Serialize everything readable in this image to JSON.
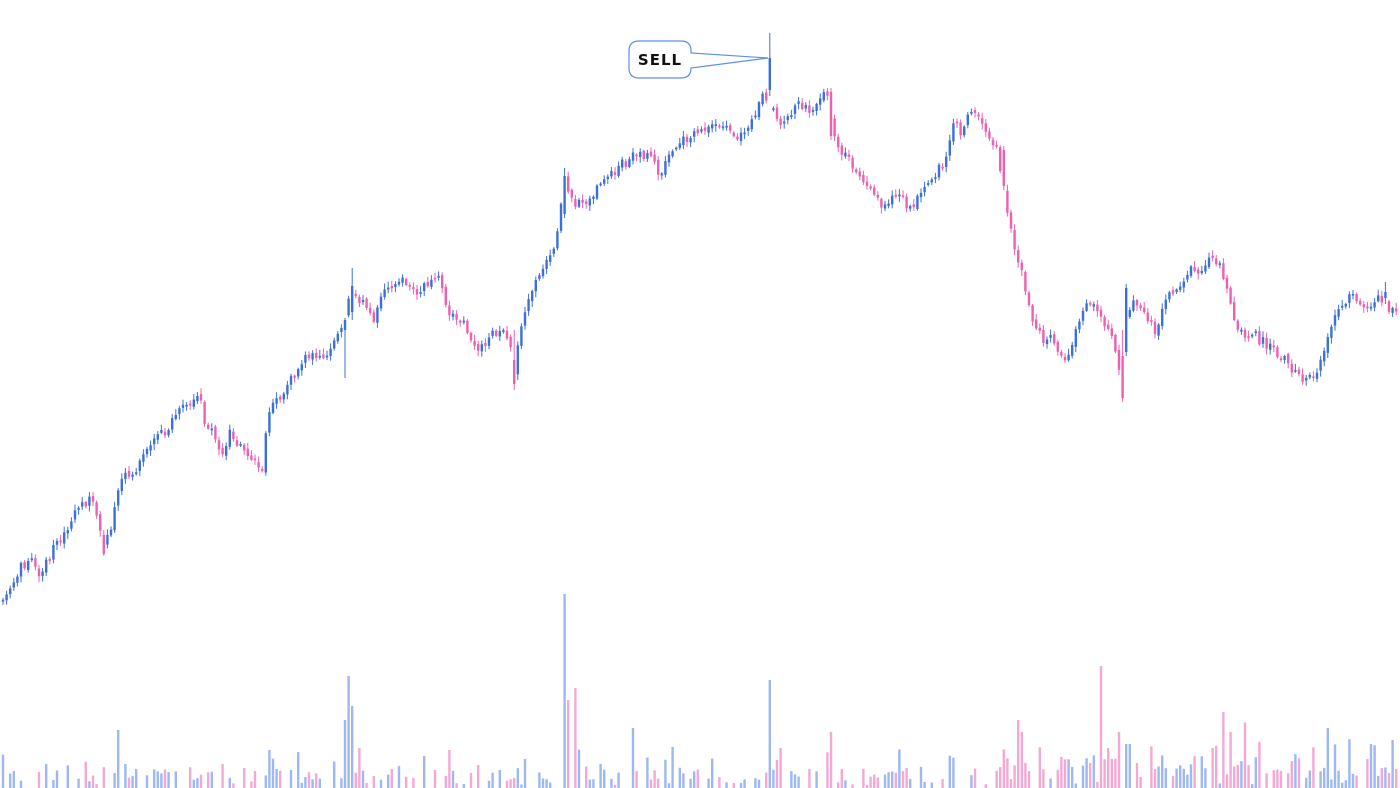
{
  "chart_data": {
    "type": "candlestick",
    "title": "",
    "xlabel": "",
    "ylabel": "",
    "grid": false,
    "legend": "none",
    "colors": {
      "up": "#3b6fd9",
      "down": "#ef5fb0",
      "volume_up": "#9db8f2",
      "volume_down": "#f4a9d4",
      "callout_stroke": "#5b8ef0"
    },
    "anchors": [
      [
        0,
        604
      ],
      [
        8,
        597
      ],
      [
        16,
        582
      ],
      [
        24,
        565
      ],
      [
        32,
        560
      ],
      [
        40,
        575
      ],
      [
        48,
        562
      ],
      [
        56,
        548
      ],
      [
        64,
        538
      ],
      [
        72,
        520
      ],
      [
        80,
        510
      ],
      [
        88,
        502
      ],
      [
        96,
        500
      ],
      [
        104,
        545
      ],
      [
        112,
        530
      ],
      [
        118,
        500
      ],
      [
        124,
        478
      ],
      [
        132,
        472
      ],
      [
        140,
        468
      ],
      [
        148,
        452
      ],
      [
        156,
        434
      ],
      [
        162,
        430
      ],
      [
        168,
        442
      ],
      [
        174,
        420
      ],
      [
        180,
        410
      ],
      [
        188,
        408
      ],
      [
        196,
        404
      ],
      [
        202,
        398
      ],
      [
        208,
        428
      ],
      [
        216,
        436
      ],
      [
        224,
        458
      ],
      [
        232,
        432
      ],
      [
        240,
        448
      ],
      [
        248,
        452
      ],
      [
        256,
        460
      ],
      [
        264,
        468
      ],
      [
        270,
        412
      ],
      [
        278,
        400
      ],
      [
        286,
        392
      ],
      [
        294,
        378
      ],
      [
        302,
        370
      ],
      [
        308,
        356
      ],
      [
        316,
        356
      ],
      [
        324,
        358
      ],
      [
        332,
        348
      ],
      [
        340,
        338
      ],
      [
        346,
        320
      ],
      [
        352,
        290
      ],
      [
        358,
        298
      ],
      [
        364,
        302
      ],
      [
        370,
        312
      ],
      [
        376,
        318
      ],
      [
        382,
        298
      ],
      [
        388,
        292
      ],
      [
        396,
        286
      ],
      [
        402,
        280
      ],
      [
        410,
        288
      ],
      [
        418,
        290
      ],
      [
        426,
        286
      ],
      [
        434,
        282
      ],
      [
        440,
        274
      ],
      [
        448,
        304
      ],
      [
        456,
        320
      ],
      [
        464,
        322
      ],
      [
        472,
        338
      ],
      [
        480,
        346
      ],
      [
        488,
        342
      ],
      [
        496,
        332
      ],
      [
        504,
        328
      ],
      [
        512,
        348
      ],
      [
        516,
        370
      ],
      [
        522,
        330
      ],
      [
        528,
        308
      ],
      [
        534,
        292
      ],
      [
        540,
        274
      ],
      [
        546,
        266
      ],
      [
        552,
        258
      ],
      [
        558,
        246
      ],
      [
        566,
        180
      ],
      [
        572,
        190
      ],
      [
        578,
        204
      ],
      [
        586,
        206
      ],
      [
        594,
        196
      ],
      [
        600,
        186
      ],
      [
        606,
        178
      ],
      [
        614,
        172
      ],
      [
        622,
        166
      ],
      [
        630,
        160
      ],
      [
        638,
        152
      ],
      [
        646,
        156
      ],
      [
        654,
        160
      ],
      [
        660,
        172
      ],
      [
        666,
        168
      ],
      [
        674,
        150
      ],
      [
        680,
        146
      ],
      [
        688,
        138
      ],
      [
        696,
        136
      ],
      [
        704,
        132
      ],
      [
        712,
        130
      ],
      [
        720,
        126
      ],
      [
        728,
        124
      ],
      [
        734,
        130
      ],
      [
        740,
        138
      ],
      [
        746,
        136
      ],
      [
        752,
        128
      ],
      [
        758,
        110
      ],
      [
        764,
        94
      ],
      [
        770,
        100
      ],
      [
        776,
        116
      ],
      [
        782,
        130
      ],
      [
        788,
        122
      ],
      [
        794,
        114
      ],
      [
        800,
        106
      ],
      [
        806,
        110
      ],
      [
        812,
        108
      ],
      [
        818,
        104
      ],
      [
        824,
        96
      ],
      [
        830,
        100
      ],
      [
        836,
        140
      ],
      [
        842,
        154
      ],
      [
        848,
        158
      ],
      [
        854,
        166
      ],
      [
        860,
        178
      ],
      [
        866,
        188
      ],
      [
        872,
        192
      ],
      [
        878,
        196
      ],
      [
        884,
        206
      ],
      [
        890,
        202
      ],
      [
        896,
        196
      ],
      [
        902,
        192
      ],
      [
        908,
        204
      ],
      [
        914,
        210
      ],
      [
        920,
        196
      ],
      [
        926,
        188
      ],
      [
        932,
        180
      ],
      [
        938,
        172
      ],
      [
        944,
        166
      ],
      [
        950,
        152
      ],
      [
        956,
        124
      ],
      [
        962,
        132
      ],
      [
        968,
        118
      ],
      [
        974,
        114
      ],
      [
        980,
        118
      ],
      [
        986,
        126
      ],
      [
        992,
        146
      ],
      [
        998,
        144
      ],
      [
        1004,
        184
      ],
      [
        1010,
        212
      ],
      [
        1016,
        244
      ],
      [
        1022,
        266
      ],
      [
        1028,
        296
      ],
      [
        1034,
        316
      ],
      [
        1040,
        328
      ],
      [
        1046,
        344
      ],
      [
        1052,
        338
      ],
      [
        1058,
        350
      ],
      [
        1064,
        360
      ],
      [
        1070,
        356
      ],
      [
        1076,
        332
      ],
      [
        1082,
        320
      ],
      [
        1088,
        300
      ],
      [
        1094,
        306
      ],
      [
        1100,
        312
      ],
      [
        1106,
        322
      ],
      [
        1112,
        330
      ],
      [
        1118,
        350
      ],
      [
        1122,
        374
      ],
      [
        1128,
        318
      ],
      [
        1134,
        298
      ],
      [
        1140,
        306
      ],
      [
        1146,
        310
      ],
      [
        1152,
        322
      ],
      [
        1158,
        334
      ],
      [
        1164,
        306
      ],
      [
        1170,
        296
      ],
      [
        1176,
        290
      ],
      [
        1182,
        282
      ],
      [
        1188,
        276
      ],
      [
        1194,
        270
      ],
      [
        1200,
        274
      ],
      [
        1206,
        266
      ],
      [
        1212,
        258
      ],
      [
        1218,
        264
      ],
      [
        1224,
        276
      ],
      [
        1230,
        298
      ],
      [
        1236,
        322
      ],
      [
        1242,
        330
      ],
      [
        1248,
        334
      ],
      [
        1254,
        336
      ],
      [
        1260,
        340
      ],
      [
        1266,
        342
      ],
      [
        1272,
        348
      ],
      [
        1278,
        352
      ],
      [
        1284,
        358
      ],
      [
        1290,
        364
      ],
      [
        1296,
        372
      ],
      [
        1302,
        376
      ],
      [
        1308,
        378
      ],
      [
        1314,
        376
      ],
      [
        1320,
        370
      ],
      [
        1326,
        346
      ],
      [
        1332,
        326
      ],
      [
        1338,
        316
      ],
      [
        1344,
        308
      ],
      [
        1350,
        300
      ],
      [
        1356,
        296
      ],
      [
        1362,
        302
      ],
      [
        1368,
        304
      ],
      [
        1376,
        302
      ],
      [
        1384,
        298
      ],
      [
        1392,
        312
      ],
      [
        1400,
        314
      ]
    ],
    "volume_spikes": [
      [
        118,
        58
      ],
      [
        124,
        24
      ],
      [
        222,
        24
      ],
      [
        270,
        38
      ],
      [
        346,
        68
      ],
      [
        350,
        112
      ],
      [
        352,
        82
      ],
      [
        358,
        40
      ],
      [
        372,
        56
      ],
      [
        424,
        32
      ],
      [
        448,
        38
      ],
      [
        566,
        194
      ],
      [
        570,
        88
      ],
      [
        574,
        100
      ],
      [
        634,
        60
      ],
      [
        770,
        108
      ],
      [
        776,
        28
      ],
      [
        782,
        40
      ],
      [
        832,
        56
      ],
      [
        1018,
        68
      ],
      [
        1022,
        56
      ],
      [
        1100,
        122
      ],
      [
        1108,
        40
      ],
      [
        1120,
        56
      ],
      [
        1128,
        44
      ],
      [
        1224,
        76
      ],
      [
        1232,
        56
      ],
      [
        1328,
        60
      ],
      [
        1370,
        44
      ],
      [
        1394,
        48
      ]
    ],
    "annotations": [
      {
        "text": "SELL",
        "target": [
          770,
          56
        ]
      }
    ]
  }
}
